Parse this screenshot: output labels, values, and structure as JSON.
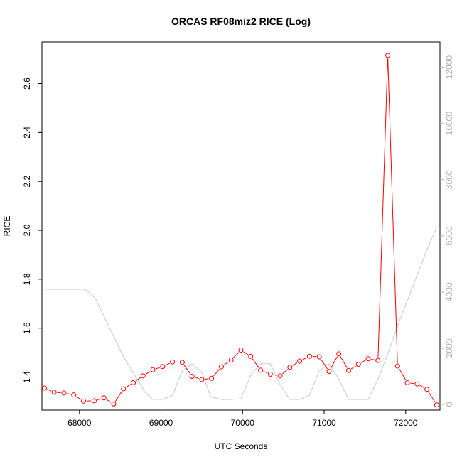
{
  "chart_data": {
    "type": "line",
    "title": "ORCAS RF08miz2 RICE (Log)",
    "xlabel": "UTC Seconds",
    "ylabel": "RICE",
    "xlim": [
      67540,
      72420
    ],
    "ylim": [
      1.265,
      2.77
    ],
    "y2lim": [
      -200,
      12900
    ],
    "x_ticks": [
      68000,
      69000,
      70000,
      71000,
      72000
    ],
    "y_ticks": [
      1.4,
      1.6,
      1.8,
      2.0,
      2.2,
      2.4,
      2.6
    ],
    "y_tick_labels": [
      "1.4",
      "1.6",
      "1.8",
      "2.0",
      "2.2",
      "2.4",
      "2.6"
    ],
    "y2_ticks": [
      0,
      2000,
      4000,
      6000,
      8000,
      10000,
      12000
    ],
    "y2_tick_labels": [
      "0",
      "2000",
      "4000",
      "6000",
      "8000",
      "10000",
      "12000"
    ],
    "grid": false,
    "series": [
      {
        "axis": "left",
        "style": "line-with-open-circles",
        "color": "#ff0000",
        "x": [
          67570,
          67690,
          67810,
          67930,
          68050,
          68180,
          68300,
          68420,
          68540,
          68660,
          68780,
          68900,
          69020,
          69140,
          69260,
          69380,
          69500,
          69620,
          69740,
          69860,
          69980,
          70100,
          70220,
          70340,
          70460,
          70580,
          70700,
          70820,
          70940,
          71060,
          71180,
          71300,
          71420,
          71540,
          71660,
          71780,
          71900,
          72020,
          72140,
          72260,
          72380
        ],
        "values": [
          1.355,
          1.338,
          1.335,
          1.327,
          1.302,
          1.303,
          1.315,
          1.29,
          1.352,
          1.377,
          1.405,
          1.43,
          1.443,
          1.462,
          1.46,
          1.403,
          1.39,
          1.395,
          1.442,
          1.47,
          1.51,
          1.485,
          1.428,
          1.412,
          1.405,
          1.44,
          1.465,
          1.485,
          1.483,
          1.423,
          1.495,
          1.427,
          1.452,
          1.475,
          1.468,
          2.715,
          1.445,
          1.377,
          1.372,
          1.35,
          1.286
        ]
      },
      {
        "axis": "right",
        "style": "line",
        "color": "#c8c8c8",
        "x": [
          67570,
          67800,
          68070,
          68190,
          68540,
          68800,
          68900,
          69020,
          69140,
          69260,
          69380,
          69500,
          69610,
          69740,
          69860,
          69980,
          70100,
          70220,
          70340,
          70460,
          70580,
          70700,
          70820,
          70940,
          71060,
          71180,
          71300,
          71420,
          71540,
          71660,
          71780,
          71900,
          72020,
          72140,
          72260,
          72380
        ],
        "values": [
          4100,
          4100,
          4100,
          3800,
          1700,
          450,
          180,
          180,
          320,
          1200,
          1450,
          1150,
          270,
          180,
          180,
          200,
          1050,
          1450,
          1450,
          700,
          180,
          180,
          330,
          1200,
          1450,
          900,
          180,
          180,
          180,
          900,
          1800,
          2800,
          3700,
          4600,
          5500,
          6300
        ]
      }
    ]
  }
}
